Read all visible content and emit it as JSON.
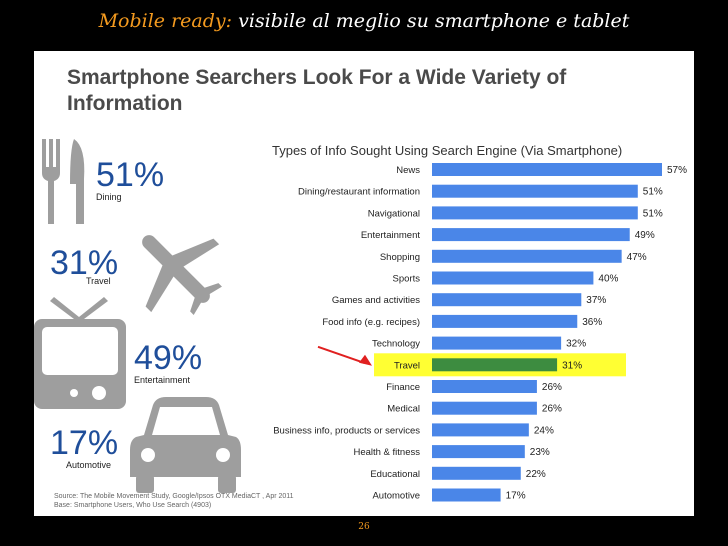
{
  "header": {
    "accent": "Mobile ready:",
    "rest": " visibile al meglio su smartphone e tablet"
  },
  "slide": {
    "title": "Smartphone Searchers Look For a Wide Variety of Information",
    "stats": [
      {
        "pct": "51%",
        "label": "Dining"
      },
      {
        "pct": "31%",
        "label": "Travel"
      },
      {
        "pct": "49%",
        "label": "Entertainment"
      },
      {
        "pct": "17%",
        "label": "Automotive"
      }
    ],
    "source": "Source: The Mobile Movement Study, Google/Ipsos OTX MediaCT , Apr 2011",
    "base": "Base:   Smartphone Users, Who Use Search (4903)"
  },
  "page_number": "26",
  "colors": {
    "bar": "#4a86e8",
    "highlight_bar": "#3d8c40",
    "highlight_bg": "#ffff33",
    "icon": "#9e9e9e",
    "stat_text": "#1f4e9a",
    "accent": "#f39a1f"
  },
  "chart_data": {
    "type": "bar",
    "orientation": "horizontal",
    "title": "Types of Info Sought Using Search Engine (Via Smartphone)",
    "categories": [
      "News",
      "Dining/restaurant information",
      "Navigational",
      "Entertainment",
      "Shopping",
      "Sports",
      "Games and activities",
      "Food info (e.g. recipes)",
      "Technology",
      "Travel",
      "Finance",
      "Medical",
      "Business info, products or services",
      "Health & fitness",
      "Educational",
      "Automotive"
    ],
    "values": [
      57,
      51,
      51,
      49,
      47,
      40,
      37,
      36,
      32,
      31,
      26,
      26,
      24,
      23,
      22,
      17
    ],
    "value_labels": [
      "57%",
      "51%",
      "51%",
      "49%",
      "47%",
      "40%",
      "37%",
      "36%",
      "32%",
      "31%",
      "26%",
      "26%",
      "24%",
      "23%",
      "22%",
      "17%"
    ],
    "highlight": "Travel",
    "xlim": [
      0,
      57
    ]
  }
}
